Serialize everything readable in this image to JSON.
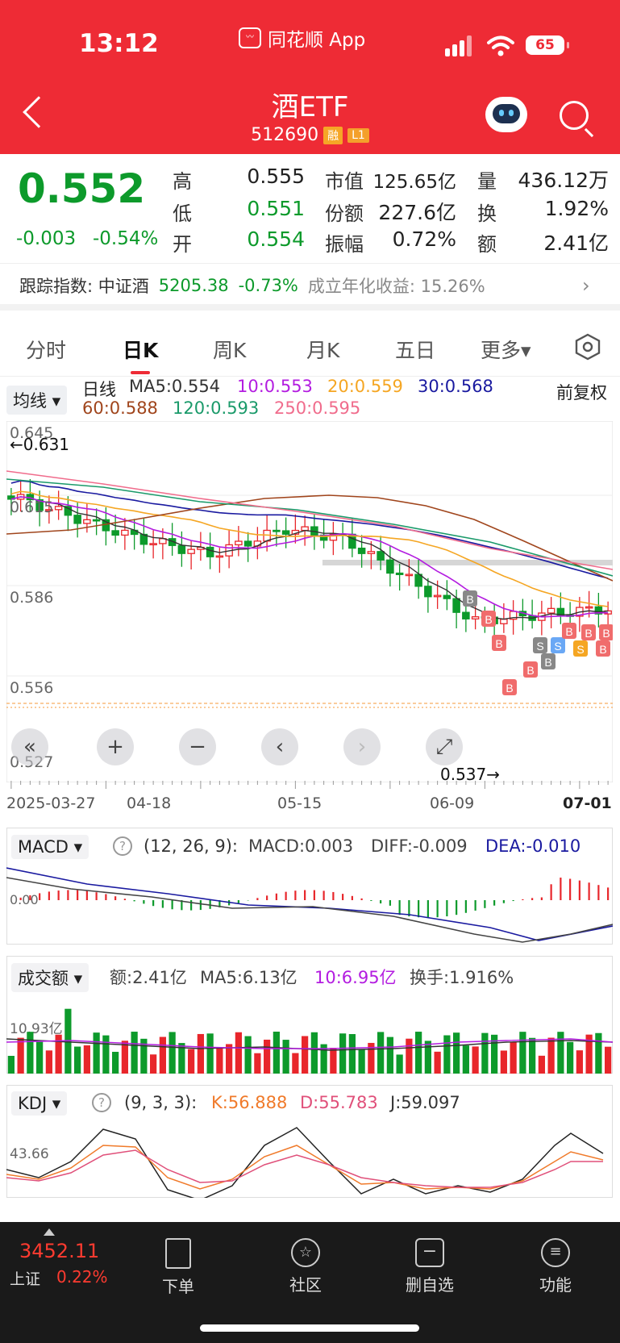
{
  "status": {
    "time": "13:12",
    "app_name": "同花顺 App",
    "battery": "65"
  },
  "header": {
    "title": "酒ETF",
    "code": "512690",
    "tag1": "融",
    "tag2": "L1"
  },
  "quote": {
    "price": "0.552",
    "change": "-0.003",
    "change_pct": "-0.54%",
    "high_label": "高",
    "high": "0.555",
    "low_label": "低",
    "low": "0.551",
    "open_label": "开",
    "open": "0.554",
    "mcap_label": "市值",
    "mcap": "125.65亿",
    "shares_label": "份额",
    "shares": "227.6亿",
    "amp_label": "振幅",
    "amp": "0.72%",
    "vol_label": "量",
    "vol": "436.12万",
    "turn_label": "换",
    "turn": "1.92%",
    "amt_label": "额",
    "amt": "2.41亿"
  },
  "track": {
    "label": "跟踪指数: 中证酒",
    "index_value": "5205.38",
    "index_pct": "-0.73%",
    "annual": "成立年化收益: 15.26%"
  },
  "tabs": [
    "分时",
    "日K",
    "周K",
    "月K",
    "五日",
    "更多▾"
  ],
  "kline": {
    "ma_select": "均线 ▾",
    "period": "日线",
    "ma5": "MA5:0.554",
    "ma10": "10:0.553",
    "ma20": "20:0.559",
    "ma30": "30:0.568",
    "ma60": "60:0.588",
    "ma120": "120:0.593",
    "ma250": "250:0.595",
    "adjust": "前复权",
    "y_labels": [
      "0.645",
      "0.615",
      "0.586",
      "0.556",
      "0.527"
    ],
    "high_mark": "←0.631",
    "low_mark": "0.537→",
    "dates": [
      "2025-03-27",
      "04-18",
      "05-15",
      "06-09",
      "07-01"
    ],
    "ctrl": [
      "«",
      "+",
      "−",
      "‹",
      "›",
      "⤢"
    ],
    "colors": {
      "up": "#e8262b",
      "down": "#0d9a2b",
      "ma5": "#333333",
      "ma10": "#b31ce0",
      "ma20": "#f5a623",
      "ma30": "#1a1aa0",
      "ma60": "#a0451c",
      "ma120": "#1a9a6a",
      "ma250": "#f06c8c"
    }
  },
  "macd": {
    "select": "MACD ▾",
    "params": "(12, 26, 9):",
    "macd": "MACD:0.003",
    "diff": "DIFF:-0.009",
    "dea": "DEA:-0.010",
    "zero": "0.00"
  },
  "volume": {
    "select": "成交额 ▾",
    "amt": "额:2.41亿",
    "ma5": "MA5:6.13亿",
    "ma10": "10:6.95亿",
    "turnover": "换手:1.916%",
    "top": "10.93亿"
  },
  "kdj": {
    "select": "KDJ ▾",
    "params": "(9, 3, 3):",
    "k": "K:56.888",
    "d": "D:55.783",
    "j": "J:59.097",
    "level": "43.66"
  },
  "bottom": {
    "index_value": "3452.11",
    "index_name": "上证",
    "index_pct": "0.22%",
    "items": [
      "下单",
      "社区",
      "删自选",
      "功能"
    ]
  }
}
